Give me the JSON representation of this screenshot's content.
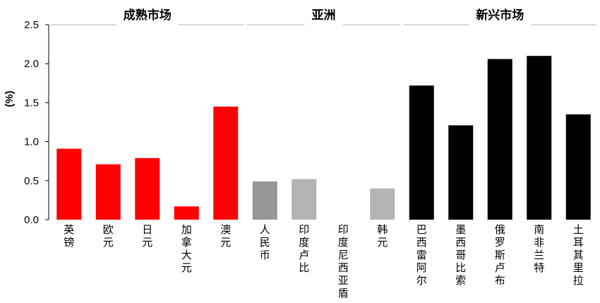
{
  "chart_data": {
    "type": "bar",
    "ylabel": "(%)",
    "ylim": [
      0,
      2.5
    ],
    "yticks": [
      "0.0",
      "0.5",
      "1.0",
      "1.5",
      "2.0",
      "2.5"
    ],
    "grid": false,
    "categories": [
      "英镑",
      "欧元",
      "日元",
      "加拿大元",
      "澳元",
      "人民币",
      "印度卢比",
      "印度尼西亚盾",
      "韩元",
      "巴西雷阿尔",
      "墨西哥比索",
      "俄罗斯卢布",
      "南非兰特",
      "土耳其里拉"
    ],
    "values": [
      0.91,
      0.71,
      0.79,
      0.17,
      1.45,
      0.49,
      0.52,
      0.0,
      0.4,
      1.72,
      1.21,
      2.06,
      2.1,
      1.35
    ],
    "colors": [
      "#ff0000",
      "#ff0000",
      "#ff0000",
      "#ff0000",
      "#ff0000",
      "#969696",
      "#b4b4b4",
      "#b4b4b4",
      "#b4b4b4",
      "#000000",
      "#000000",
      "#000000",
      "#000000",
      "#000000"
    ],
    "groups": [
      {
        "name": "成熟市场",
        "start": 0,
        "end": 4
      },
      {
        "name": "亚洲",
        "start": 5,
        "end": 8
      },
      {
        "name": "新兴市场",
        "start": 9,
        "end": 13
      }
    ]
  }
}
